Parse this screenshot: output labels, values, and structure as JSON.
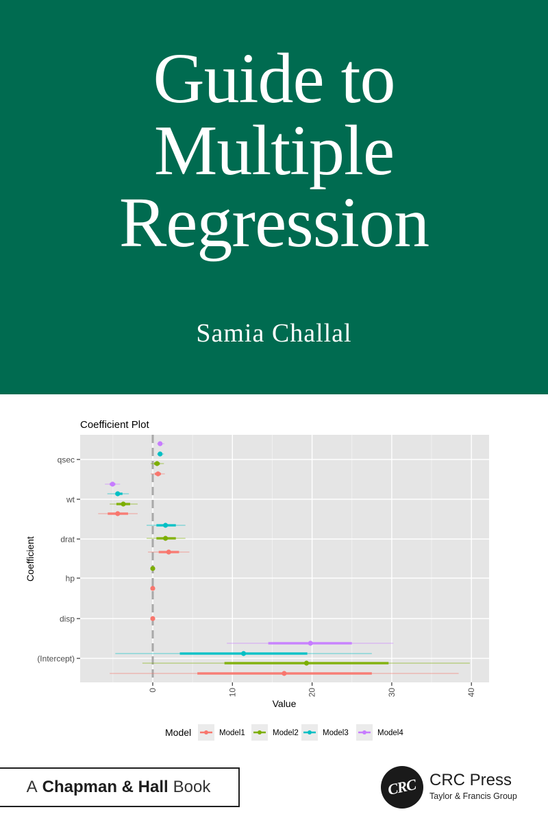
{
  "cover": {
    "title_lines": [
      "Guide to",
      "Multiple",
      "Regression"
    ],
    "author": "Samia Challal",
    "banner_color": "#006b50"
  },
  "publisher": {
    "imprint_prefix": "A",
    "imprint_name": "Chapman & Hall",
    "imprint_suffix": "Book",
    "logo_text": "CRC",
    "name": "CRC Press",
    "group": "Taylor & Francis Group"
  },
  "chart_data": {
    "type": "coefficient_plot",
    "title": "Coefficient Plot",
    "xlabel": "Value",
    "ylabel": "Coefficient",
    "xlim": [
      -9,
      42
    ],
    "x_ticks": [
      0,
      10,
      20,
      30,
      40
    ],
    "categories": [
      "(Intercept)",
      "disp",
      "hp",
      "drat",
      "wt",
      "qsec"
    ],
    "grid": true,
    "reference_line": 0,
    "legend": {
      "title": "Model",
      "position": "bottom",
      "entries": [
        "Model1",
        "Model2",
        "Model3",
        "Model4"
      ]
    },
    "colors": {
      "Model1": "#f8766d",
      "Model2": "#7cae00",
      "Model3": "#00bfc4",
      "Model4": "#c77cff"
    },
    "series": [
      {
        "name": "Model1",
        "color": "#f8766d",
        "points": [
          {
            "coef": "(Intercept)",
            "value": 16.5,
            "inner": [
              5.6,
              27.5
            ],
            "outer": [
              -5.4,
              38.4
            ]
          },
          {
            "coef": "disp",
            "value": 0.0,
            "inner": [
              0.0,
              0.0
            ],
            "outer": [
              0.0,
              0.0
            ]
          },
          {
            "coef": "hp",
            "value": 0.0,
            "inner": [
              0.0,
              0.0
            ],
            "outer": [
              0.0,
              0.0
            ]
          },
          {
            "coef": "drat",
            "value": 2.0,
            "inner": [
              0.75,
              3.3
            ],
            "outer": [
              -0.6,
              4.6
            ]
          },
          {
            "coef": "wt",
            "value": -4.4,
            "inner": [
              -5.65,
              -3.1
            ],
            "outer": [
              -6.85,
              -1.9
            ]
          },
          {
            "coef": "qsec",
            "value": 0.66,
            "inner": [
              0.26,
              1.03
            ],
            "outer": [
              -0.26,
              1.52
            ]
          }
        ]
      },
      {
        "name": "Model2",
        "color": "#7cae00",
        "points": [
          {
            "coef": "(Intercept)",
            "value": 19.3,
            "inner": [
              9.0,
              29.6
            ],
            "outer": [
              -1.3,
              39.8
            ]
          },
          {
            "coef": "hp",
            "value": 0.0,
            "inner": [
              0.0,
              0.0
            ],
            "outer": [
              0.0,
              0.0
            ]
          },
          {
            "coef": "drat",
            "value": 1.6,
            "inner": [
              0.46,
              2.9
            ],
            "outer": [
              -0.77,
              4.1
            ]
          },
          {
            "coef": "wt",
            "value": -3.7,
            "inner": [
              -4.56,
              -2.84
            ],
            "outer": [
              -5.4,
              -1.9
            ]
          },
          {
            "coef": "qsec",
            "value": 0.54,
            "inner": [
              0.17,
              0.89
            ],
            "outer": [
              -0.26,
              1.4
            ]
          }
        ]
      },
      {
        "name": "Model3",
        "color": "#00bfc4",
        "points": [
          {
            "coef": "(Intercept)",
            "value": 11.4,
            "inner": [
              3.4,
              19.4
            ],
            "outer": [
              -4.7,
              27.5
            ]
          },
          {
            "coef": "drat",
            "value": 1.6,
            "inner": [
              0.46,
              2.9
            ],
            "outer": [
              -0.77,
              4.1
            ]
          },
          {
            "coef": "wt",
            "value": -4.4,
            "inner": [
              -4.7,
              -3.8
            ],
            "outer": [
              -5.7,
              -3.0
            ]
          },
          {
            "coef": "qsec",
            "value": 0.92,
            "inner": [
              0.8,
              1.1
            ],
            "outer": [
              0.54,
              1.4
            ]
          }
        ]
      },
      {
        "name": "Model4",
        "color": "#c77cff",
        "points": [
          {
            "coef": "(Intercept)",
            "value": 19.8,
            "inner": [
              14.5,
              25.0
            ],
            "outer": [
              9.3,
              30.2
            ]
          },
          {
            "coef": "wt",
            "value": -5.05,
            "inner": [
              -5.4,
              -4.7
            ],
            "outer": [
              -6.0,
              -4.1
            ]
          },
          {
            "coef": "qsec",
            "value": 0.92,
            "inner": [
              0.8,
              1.1
            ],
            "outer": [
              0.54,
              1.46
            ]
          }
        ]
      }
    ]
  }
}
